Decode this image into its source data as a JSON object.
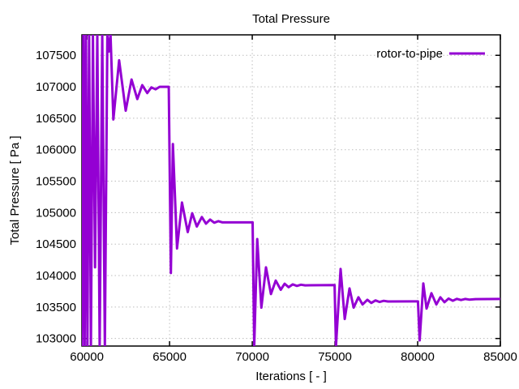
{
  "chart": {
    "title": "Total Pressure",
    "xlabel": "Iterations [ - ]",
    "ylabel": "Total Pressure [ Pa ]",
    "legend": {
      "series_label": "rotor-to-pipe"
    }
  },
  "colors": {
    "line": "#9400D3",
    "grid": "#bdbdbd",
    "border": "#000000",
    "background": "#ffffff",
    "text": "#000000"
  },
  "chart_data": {
    "type": "line",
    "title": "Total Pressure",
    "xlabel": "Iterations [ - ]",
    "ylabel": "Total Pressure [ Pa ]",
    "grid": true,
    "legend_position": "top-right-inside",
    "xlim": [
      59700,
      85000
    ],
    "ylim": [
      102880,
      107825
    ],
    "x_ticks": [
      60000,
      65000,
      70000,
      75000,
      80000,
      85000
    ],
    "y_ticks": [
      103000,
      103500,
      104000,
      104500,
      105000,
      105500,
      106000,
      106500,
      107000,
      107500
    ],
    "series": [
      {
        "name": "rotor-to-pipe",
        "color": "#9400D3",
        "points": [
          [
            59712,
            102880
          ],
          [
            59790,
            107825
          ],
          [
            59865,
            102880
          ],
          [
            59945,
            107825
          ],
          [
            60035,
            102880
          ],
          [
            60135,
            107825
          ],
          [
            60245,
            102880
          ],
          [
            60365,
            107825
          ],
          [
            60495,
            104130
          ],
          [
            60630,
            107825
          ],
          [
            60775,
            102880
          ],
          [
            60930,
            107825
          ],
          [
            61090,
            102880
          ],
          [
            61240,
            107825
          ],
          [
            61330,
            107560
          ],
          [
            61430,
            107825
          ],
          [
            61600,
            106480
          ],
          [
            61950,
            107420
          ],
          [
            62350,
            106620
          ],
          [
            62700,
            107115
          ],
          [
            63050,
            106805
          ],
          [
            63350,
            107025
          ],
          [
            63650,
            106900
          ],
          [
            63900,
            106990
          ],
          [
            64150,
            106960
          ],
          [
            64400,
            107000
          ],
          [
            64950,
            107000
          ],
          [
            65080,
            104040
          ],
          [
            65200,
            106090
          ],
          [
            65450,
            104430
          ],
          [
            65750,
            105160
          ],
          [
            66100,
            104690
          ],
          [
            66370,
            104990
          ],
          [
            66650,
            104780
          ],
          [
            66950,
            104930
          ],
          [
            67200,
            104825
          ],
          [
            67450,
            104890
          ],
          [
            67700,
            104840
          ],
          [
            67950,
            104865
          ],
          [
            68200,
            104845
          ],
          [
            70020,
            104845
          ],
          [
            70120,
            102880
          ],
          [
            70300,
            104580
          ],
          [
            70550,
            103490
          ],
          [
            70830,
            104130
          ],
          [
            71130,
            103705
          ],
          [
            71420,
            103920
          ],
          [
            71720,
            103775
          ],
          [
            71960,
            103870
          ],
          [
            72200,
            103815
          ],
          [
            72450,
            103860
          ],
          [
            72700,
            103835
          ],
          [
            72950,
            103855
          ],
          [
            73200,
            103845
          ],
          [
            74980,
            103848
          ],
          [
            75060,
            102880
          ],
          [
            75340,
            104105
          ],
          [
            75590,
            103310
          ],
          [
            75880,
            103795
          ],
          [
            76130,
            103490
          ],
          [
            76420,
            103655
          ],
          [
            76670,
            103540
          ],
          [
            76960,
            103615
          ],
          [
            77200,
            103565
          ],
          [
            77450,
            103605
          ],
          [
            77700,
            103580
          ],
          [
            77950,
            103598
          ],
          [
            78200,
            103588
          ],
          [
            80020,
            103590
          ],
          [
            80120,
            102970
          ],
          [
            80340,
            103875
          ],
          [
            80540,
            103475
          ],
          [
            80830,
            103720
          ],
          [
            81130,
            103540
          ],
          [
            81370,
            103655
          ],
          [
            81620,
            103577
          ],
          [
            81870,
            103635
          ],
          [
            82120,
            103600
          ],
          [
            82370,
            103630
          ],
          [
            82620,
            103612
          ],
          [
            82870,
            103628
          ],
          [
            83120,
            103618
          ],
          [
            83500,
            103625
          ],
          [
            85000,
            103628
          ]
        ]
      }
    ]
  }
}
